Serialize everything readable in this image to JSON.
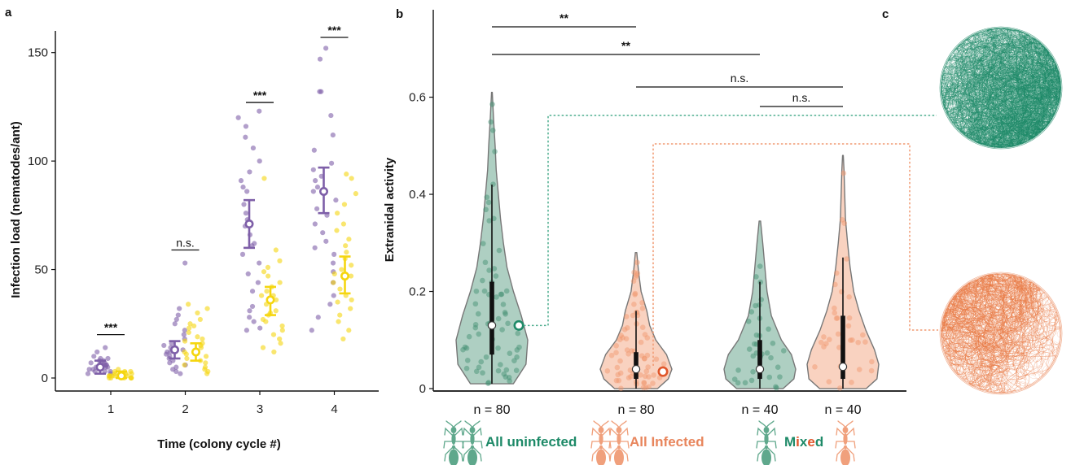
{
  "colors": {
    "purple": "#7E5FA8",
    "yellow": "#F5D60F",
    "green": "#3E8C6E",
    "green_dark": "#1E8A68",
    "orange": "#F0946A",
    "orange_dark": "#E0562A",
    "violin_edge": "#777777"
  },
  "icons": [
    "ant-icon"
  ],
  "panels": {
    "a": "a",
    "b": "b",
    "c": "c"
  },
  "chart_data": [
    {
      "panel": "a",
      "type": "scatter",
      "xlabel": "Time (colony cycle #)",
      "ylabel": "Infection load (nematodes/ant)",
      "xticks": [
        "1",
        "2",
        "3",
        "4"
      ],
      "yticks": [
        0,
        50,
        100,
        150
      ],
      "ylim": [
        -6,
        160
      ],
      "series": [
        {
          "color": "purple",
          "groups": [
            {
              "x": "1",
              "mean": 5,
              "ci": [
                2,
                8
              ],
              "points": [
                2,
                3,
                3,
                4,
                5,
                5,
                5,
                6,
                6,
                7,
                7,
                8,
                9,
                10,
                12,
                14,
                3,
                4,
                6,
                8,
                2,
                5,
                7,
                9
              ]
            },
            {
              "x": "2",
              "mean": 13,
              "ci": [
                9,
                17
              ],
              "points": [
                53,
                32,
                29,
                27,
                22,
                18,
                16,
                14,
                13,
                12,
                11,
                10,
                8,
                7,
                6,
                3,
                2,
                20,
                15,
                9,
                5,
                25,
                4,
                12
              ]
            },
            {
              "x": "3",
              "mean": 71,
              "ci": [
                60,
                82
              ],
              "points": [
                123,
                120,
                116,
                111,
                106,
                100,
                95,
                91,
                86,
                80,
                76,
                73,
                70,
                66,
                61,
                57,
                53,
                48,
                44,
                40,
                33,
                31,
                28,
                26,
                23,
                22,
                62,
                88
              ]
            },
            {
              "x": "4",
              "mean": 86,
              "ci": [
                76,
                97
              ],
              "points": [
                152,
                147,
                132,
                132,
                121,
                112,
                105,
                99,
                96,
                93,
                91,
                86,
                82,
                78,
                75,
                71,
                67,
                63,
                60,
                57,
                53,
                49,
                44,
                38,
                34,
                28,
                22,
                88
              ]
            }
          ]
        },
        {
          "color": "yellow",
          "groups": [
            {
              "x": "1",
              "mean": 1,
              "ci": [
                0,
                3
              ],
              "points": [
                0,
                0,
                0,
                1,
                1,
                1,
                2,
                2,
                3,
                3,
                4,
                0,
                1,
                2,
                1,
                0,
                3,
                2,
                1,
                0
              ]
            },
            {
              "x": "2",
              "mean": 12,
              "ci": [
                8,
                16
              ],
              "points": [
                34,
                32,
                30,
                27,
                25,
                23,
                21,
                19,
                17,
                16,
                15,
                14,
                13,
                12,
                11,
                10,
                9,
                8,
                7,
                6,
                5,
                4,
                3,
                2,
                18,
                24
              ]
            },
            {
              "x": "3",
              "mean": 36,
              "ci": [
                29,
                42
              ],
              "points": [
                92,
                59,
                54,
                51,
                49,
                47,
                44,
                42,
                40,
                38,
                36,
                34,
                31,
                29,
                27,
                26,
                24,
                22,
                20,
                18,
                16,
                14,
                12,
                38,
                30
              ]
            },
            {
              "x": "4",
              "mean": 47,
              "ci": [
                39,
                56
              ],
              "points": [
                94,
                92,
                85,
                80,
                76,
                71,
                68,
                64,
                61,
                58,
                55,
                52,
                50,
                47,
                44,
                41,
                38,
                35,
                32,
                29,
                26,
                22,
                18,
                48,
                36
              ]
            }
          ]
        }
      ],
      "annotations": [
        {
          "x": "1",
          "y": 20,
          "text": "***"
        },
        {
          "x": "2",
          "y": 59,
          "text": "n.s."
        },
        {
          "x": "3",
          "y": 127,
          "text": "***"
        },
        {
          "x": "4",
          "y": 157,
          "text": "***"
        }
      ]
    },
    {
      "panel": "b",
      "type": "violin",
      "ylabel": "Extranidal activity",
      "yticks": [
        0,
        0.2,
        0.4,
        0.6
      ],
      "ylim": [
        -0.005,
        0.78
      ],
      "groups": [
        {
          "name": "All uninfected",
          "color": "green",
          "n": "n = 80",
          "median": 0.13,
          "q1": 0.07,
          "q3": 0.22,
          "wlo": 0.01,
          "whi": 0.42,
          "ymin": 0.01,
          "ymax": 0.61,
          "outline": [
            [
              0.01,
              0.6
            ],
            [
              0.05,
              0.95
            ],
            [
              0.1,
              1.0
            ],
            [
              0.15,
              0.82
            ],
            [
              0.2,
              0.6
            ],
            [
              0.25,
              0.42
            ],
            [
              0.3,
              0.32
            ],
            [
              0.35,
              0.24
            ],
            [
              0.4,
              0.18
            ],
            [
              0.45,
              0.12
            ],
            [
              0.5,
              0.09
            ],
            [
              0.55,
              0.05
            ],
            [
              0.61,
              0.01
            ]
          ]
        },
        {
          "name": "All Infected",
          "color": "orange",
          "n": "n = 80",
          "median": 0.04,
          "q1": 0.02,
          "q3": 0.075,
          "wlo": 0.0,
          "whi": 0.16,
          "ymin": 0.0,
          "ymax": 0.28,
          "outline": [
            [
              0.0,
              0.6
            ],
            [
              0.02,
              0.9
            ],
            [
              0.04,
              1.0
            ],
            [
              0.07,
              0.85
            ],
            [
              0.1,
              0.55
            ],
            [
              0.13,
              0.38
            ],
            [
              0.16,
              0.3
            ],
            [
              0.2,
              0.14
            ],
            [
              0.24,
              0.07
            ],
            [
              0.28,
              0.02
            ]
          ]
        },
        {
          "name": "Mixed uninfected",
          "color": "green",
          "n": "n = 40",
          "median": 0.04,
          "q1": 0.02,
          "q3": 0.1,
          "wlo": 0.0,
          "whi": 0.22,
          "ymin": 0.0,
          "ymax": 0.345,
          "outline": [
            [
              0.0,
              0.65
            ],
            [
              0.02,
              0.95
            ],
            [
              0.04,
              1.0
            ],
            [
              0.07,
              0.88
            ],
            [
              0.1,
              0.6
            ],
            [
              0.15,
              0.32
            ],
            [
              0.2,
              0.2
            ],
            [
              0.25,
              0.14
            ],
            [
              0.3,
              0.08
            ],
            [
              0.345,
              0.02
            ]
          ]
        },
        {
          "name": "Mixed infected",
          "color": "orange",
          "n": "n = 40",
          "median": 0.045,
          "q1": 0.02,
          "q3": 0.15,
          "wlo": 0.0,
          "whi": 0.27,
          "ymin": 0.0,
          "ymax": 0.48,
          "outline": [
            [
              0.0,
              0.65
            ],
            [
              0.02,
              0.95
            ],
            [
              0.05,
              1.0
            ],
            [
              0.08,
              0.88
            ],
            [
              0.12,
              0.64
            ],
            [
              0.16,
              0.45
            ],
            [
              0.2,
              0.3
            ],
            [
              0.25,
              0.2
            ],
            [
              0.3,
              0.13
            ],
            [
              0.35,
              0.07
            ],
            [
              0.4,
              0.05
            ],
            [
              0.45,
              0.03
            ],
            [
              0.48,
              0.01
            ]
          ]
        }
      ],
      "highlights": [
        {
          "group": 0,
          "y": 0.13,
          "color": "green_dark"
        },
        {
          "group": 1,
          "y": 0.035,
          "color": "orange_dark"
        }
      ],
      "comparisons": [
        {
          "from": 0,
          "to": 1,
          "label": "**"
        },
        {
          "from": 0,
          "to": 2,
          "label": "**"
        },
        {
          "from": 1,
          "to": 3,
          "label": "n.s."
        },
        {
          "from": 2,
          "to": 3,
          "label": "n.s."
        }
      ]
    }
  ],
  "legend": {
    "all_uninfected": "All uninfected",
    "all_infected": "All Infected",
    "mixed_parts": [
      {
        "text": "M",
        "color": "green_dark"
      },
      {
        "text": "i",
        "color": "orange_dark"
      },
      {
        "text": "x",
        "color": "green_dark"
      },
      {
        "text": "e",
        "color": "orange_dark"
      },
      {
        "text": "d",
        "color": "green_dark"
      }
    ]
  },
  "panel_c": {
    "tracks": [
      {
        "color": "green",
        "bias": "bottom-right",
        "linked_group": 0
      },
      {
        "color": "orange",
        "bias": "top-left",
        "linked_group": 1
      }
    ]
  }
}
